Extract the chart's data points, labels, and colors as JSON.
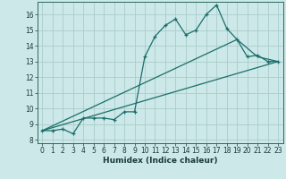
{
  "title": "",
  "xlabel": "Humidex (Indice chaleur)",
  "bg_color": "#cce8e8",
  "grid_color": "#aacccc",
  "line_color": "#1a6e6a",
  "xlim": [
    -0.5,
    23.5
  ],
  "ylim": [
    7.8,
    16.8
  ],
  "yticks": [
    8,
    9,
    10,
    11,
    12,
    13,
    14,
    15,
    16
  ],
  "xticks": [
    0,
    1,
    2,
    3,
    4,
    5,
    6,
    7,
    8,
    9,
    10,
    11,
    12,
    13,
    14,
    15,
    16,
    17,
    18,
    19,
    20,
    21,
    22,
    23
  ],
  "line1_x": [
    0,
    1,
    2,
    3,
    4,
    5,
    6,
    7,
    8,
    9,
    10,
    11,
    12,
    13,
    14,
    15,
    16,
    17,
    18,
    19,
    20,
    21,
    22,
    23
  ],
  "line1_y": [
    8.6,
    8.6,
    8.7,
    8.4,
    9.4,
    9.4,
    9.4,
    9.3,
    9.8,
    9.8,
    13.3,
    14.6,
    15.3,
    15.7,
    14.7,
    15.0,
    16.0,
    16.6,
    15.1,
    14.4,
    13.3,
    13.4,
    13.0,
    13.0
  ],
  "line2_x": [
    0,
    23
  ],
  "line2_y": [
    8.6,
    13.0
  ],
  "line3_x": [
    0,
    19,
    21,
    23
  ],
  "line3_y": [
    8.6,
    14.4,
    13.3,
    13.0
  ],
  "tick_fontsize": 5.5,
  "xlabel_fontsize": 6.5
}
